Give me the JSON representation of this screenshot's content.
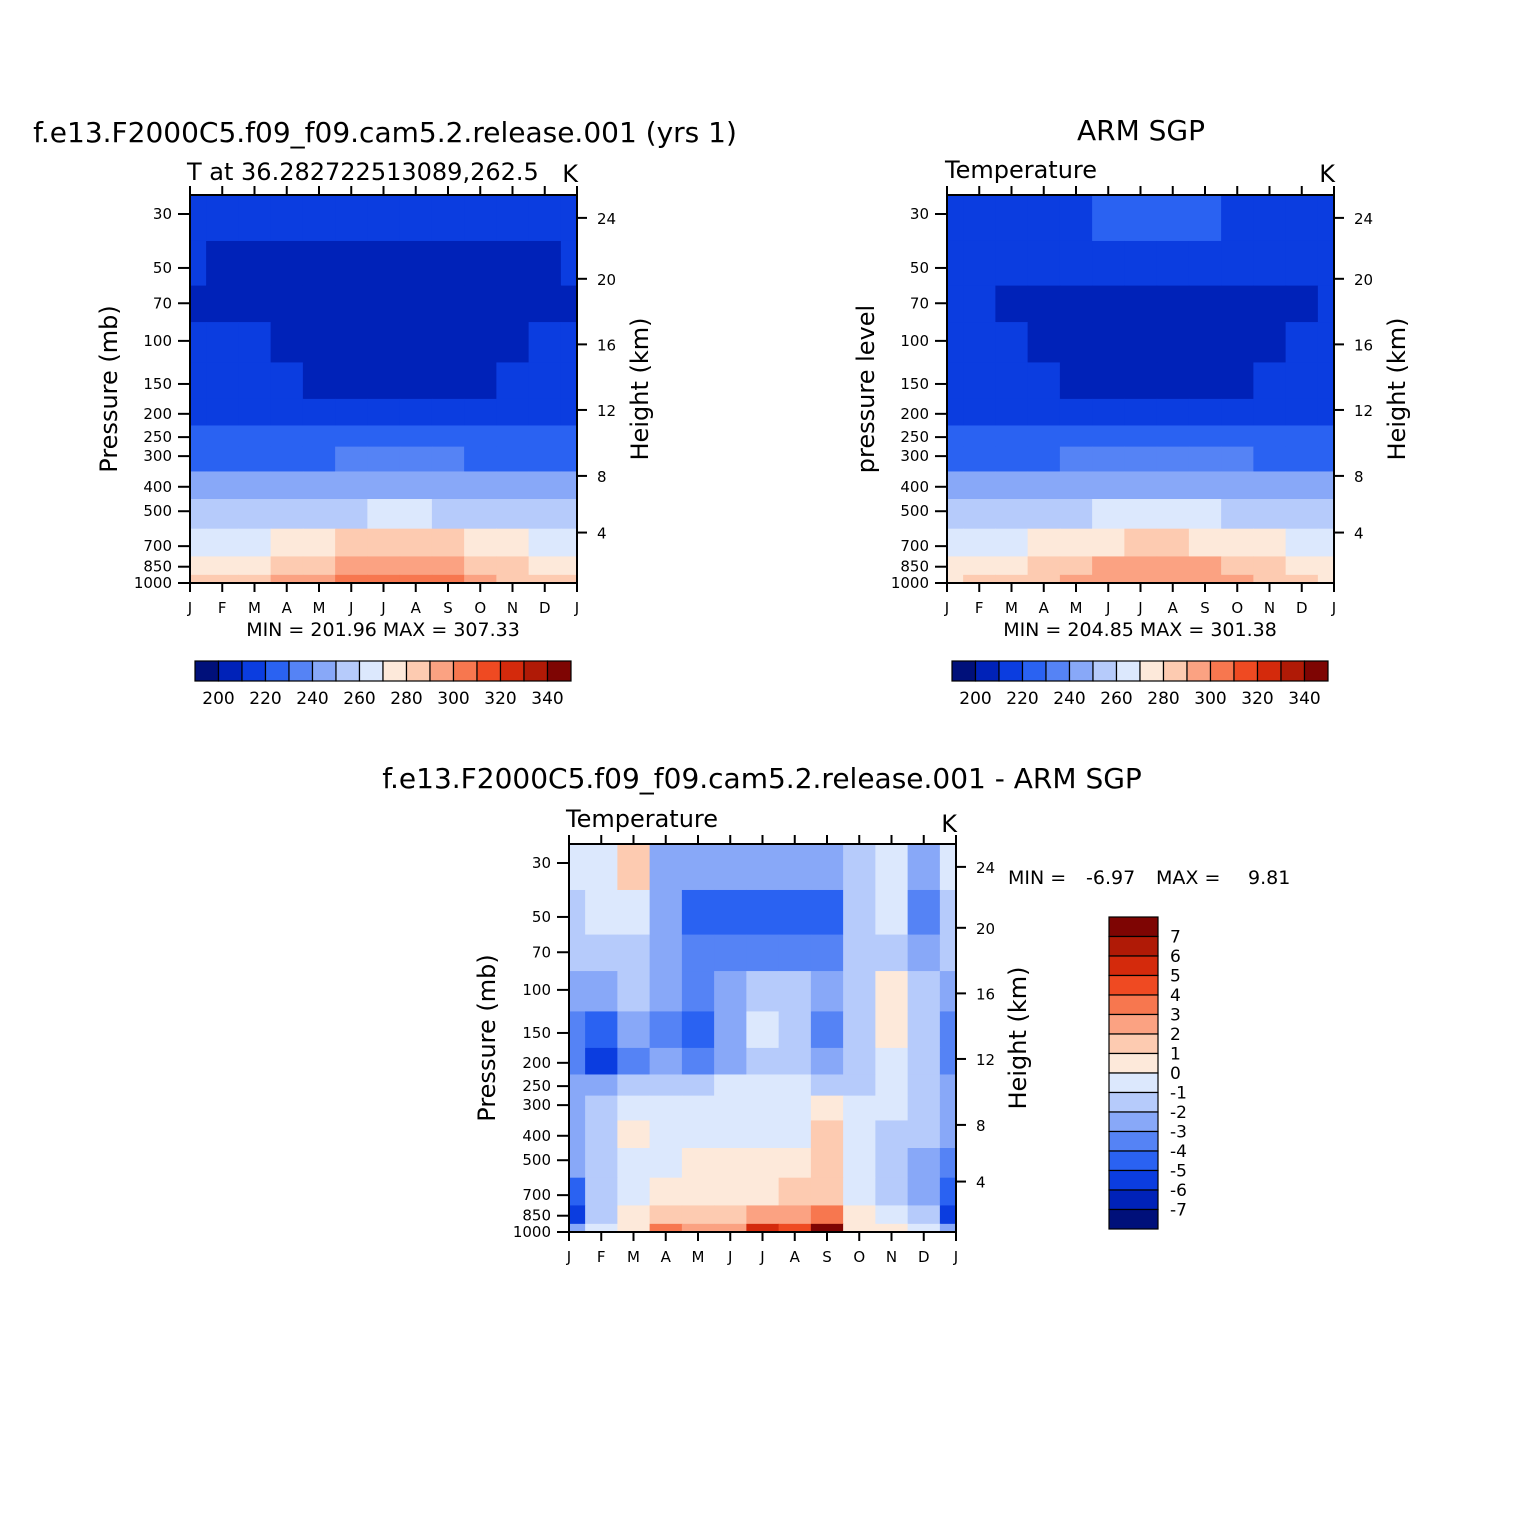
{
  "colors": {
    "abs_scale": [
      "#00107a",
      "#0022b8",
      "#0b3de0",
      "#2a62f2",
      "#5583f5",
      "#88a8f8",
      "#b6cbfb",
      "#dce8fd",
      "#fde9da",
      "#fdcbb1",
      "#fba282",
      "#f7774f",
      "#ef4a22",
      "#d42a0c",
      "#b01a06",
      "#7e0503"
    ],
    "diff_scale": [
      "#00107a",
      "#0022b8",
      "#0b3de0",
      "#2a62f2",
      "#5583f5",
      "#88a8f8",
      "#b6cbfb",
      "#dce8fd",
      "#fde9da",
      "#fdcbb1",
      "#fba282",
      "#f7774f",
      "#ef4a22",
      "#d42a0c",
      "#b01a06",
      "#7e0503"
    ]
  },
  "common": {
    "months": [
      "J",
      "F",
      "M",
      "A",
      "M",
      "J",
      "J",
      "A",
      "S",
      "O",
      "N",
      "D",
      "J"
    ],
    "pressure_ticks": [
      "30",
      "50",
      "70",
      "100",
      "150",
      "200",
      "250",
      "300",
      "400",
      "500",
      "700",
      "850",
      "1000"
    ],
    "height_ticks": [
      "24",
      "20",
      "16",
      "12",
      "8",
      "4"
    ]
  },
  "panel_model": {
    "main_title": "f.e13.F2000C5.f09_f09.cam5.2.release.001 (yrs 1)",
    "left_label": "T at 36.282722513089,262.5",
    "units": "K",
    "ylabel": "Pressure (mb)",
    "ylabel_right": "Height (km)",
    "min_max": "MIN = 201.96 MAX = 307.33",
    "colorbar_labels": [
      "200",
      "220",
      "240",
      "260",
      "280",
      "300",
      "320",
      "340"
    ]
  },
  "panel_obs": {
    "main_title": "ARM SGP",
    "left_label": "Temperature",
    "units": "K",
    "ylabel": "pressure level",
    "ylabel_right": "Height (km)",
    "min_max": "MIN = 204.85 MAX = 301.38",
    "colorbar_labels": [
      "200",
      "220",
      "240",
      "260",
      "280",
      "300",
      "320",
      "340"
    ]
  },
  "panel_diff": {
    "main_title": "f.e13.F2000C5.f09_f09.cam5.2.release.001 - ARM SGP",
    "left_label": "Temperature",
    "units": "K",
    "ylabel": "Pressure (mb)",
    "ylabel_right": "Height (km)",
    "min_label": "MIN =",
    "min_value": "-6.97",
    "max_label": "MAX =",
    "max_value": "9.81",
    "colorbar_labels": [
      "7",
      "6",
      "5",
      "4",
      "3",
      "2",
      "1",
      "0",
      "-1",
      "-2",
      "-3",
      "-4",
      "-5",
      "-6",
      "-7"
    ]
  },
  "chart_data": [
    {
      "type": "heatmap",
      "title": "f.e13.F2000C5.f09_f09.cam5.2.release.001 (yrs 1)",
      "subtitle": "T at 36.282722513089,262.5",
      "ylabel": "Pressure (mb)",
      "x": [
        "J",
        "F",
        "M",
        "A",
        "M",
        "J",
        "J",
        "A",
        "S",
        "O",
        "N",
        "D",
        "J"
      ],
      "y": [
        30,
        50,
        70,
        100,
        150,
        200,
        250,
        300,
        400,
        500,
        700,
        850,
        1000
      ],
      "min": 201.96,
      "max": 307.33,
      "values": [
        [
          215,
          214,
          213,
          212,
          212,
          212,
          212,
          212,
          212,
          212,
          213,
          214,
          216
        ],
        [
          210,
          209,
          207,
          207,
          208,
          208,
          208,
          208,
          208,
          208,
          208,
          209,
          210
        ],
        [
          207,
          206,
          205,
          205,
          206,
          206,
          206,
          206,
          206,
          206,
          206,
          206,
          207
        ],
        [
          213,
          212,
          210,
          208,
          206,
          205,
          205,
          205,
          205,
          206,
          208,
          211,
          213
        ],
        [
          216,
          215,
          213,
          211,
          208,
          206,
          206,
          206,
          206,
          208,
          211,
          214,
          216
        ],
        [
          218,
          217,
          216,
          214,
          213,
          212,
          211,
          211,
          212,
          214,
          216,
          218,
          219
        ],
        [
          222,
          221,
          221,
          220,
          220,
          221,
          221,
          221,
          221,
          221,
          221,
          222,
          223
        ],
        [
          228,
          228,
          228,
          228,
          229,
          230,
          231,
          231,
          230,
          229,
          229,
          228,
          228
        ],
        [
          240,
          240,
          241,
          242,
          244,
          246,
          247,
          247,
          246,
          244,
          242,
          241,
          240
        ],
        [
          251,
          251,
          252,
          254,
          257,
          259,
          260,
          260,
          258,
          256,
          253,
          252,
          251
        ],
        [
          266,
          267,
          269,
          273,
          277,
          281,
          282,
          282,
          280,
          276,
          271,
          268,
          266
        ],
        [
          275,
          276,
          279,
          283,
          288,
          292,
          294,
          294,
          292,
          287,
          281,
          277,
          275
        ],
        [
          281,
          282,
          286,
          291,
          297,
          302,
          305,
          304,
          300,
          294,
          287,
          283,
          281
        ]
      ]
    },
    {
      "type": "heatmap",
      "title": "ARM SGP",
      "subtitle": "Temperature",
      "ylabel": "pressure level",
      "x": [
        "J",
        "F",
        "M",
        "A",
        "M",
        "J",
        "J",
        "A",
        "S",
        "O",
        "N",
        "D",
        "J"
      ],
      "y": [
        30,
        50,
        70,
        100,
        150,
        200,
        250,
        300,
        400,
        500,
        700,
        850,
        1000
      ],
      "min": 204.85,
      "max": 301.38,
      "values": [
        [
          219,
          219,
          219,
          219,
          219,
          220,
          221,
          222,
          220,
          219,
          219,
          219,
          219
        ],
        [
          213,
          213,
          212,
          212,
          212,
          213,
          213,
          213,
          213,
          213,
          212,
          212,
          213
        ],
        [
          211,
          210,
          208,
          208,
          209,
          209,
          209,
          209,
          209,
          208,
          208,
          209,
          211
        ],
        [
          212,
          211,
          210,
          209,
          207,
          206,
          205,
          205,
          206,
          207,
          208,
          210,
          212
        ],
        [
          216,
          215,
          213,
          211,
          209,
          207,
          206,
          206,
          207,
          209,
          211,
          214,
          216
        ],
        [
          218,
          217,
          216,
          215,
          213,
          212,
          211,
          211,
          212,
          214,
          216,
          218,
          218
        ],
        [
          222,
          222,
          222,
          222,
          222,
          222,
          222,
          222,
          222,
          222,
          222,
          222,
          222
        ],
        [
          228,
          228,
          228,
          229,
          230,
          231,
          232,
          232,
          231,
          230,
          229,
          228,
          228
        ],
        [
          240,
          240,
          241,
          243,
          245,
          247,
          248,
          248,
          247,
          245,
          243,
          241,
          240
        ],
        [
          251,
          251,
          253,
          255,
          258,
          260,
          261,
          261,
          260,
          257,
          254,
          252,
          251
        ],
        [
          266,
          267,
          269,
          272,
          276,
          279,
          281,
          281,
          279,
          275,
          271,
          268,
          266
        ],
        [
          274,
          275,
          278,
          282,
          286,
          290,
          292,
          292,
          290,
          286,
          280,
          276,
          274
        ],
        [
          279,
          280,
          283,
          287,
          292,
          296,
          299,
          299,
          296,
          291,
          285,
          281,
          279
        ]
      ]
    },
    {
      "type": "heatmap",
      "title": "f.e13.F2000C5.f09_f09.cam5.2.release.001 - ARM SGP",
      "subtitle": "Temperature",
      "ylabel": "Pressure (mb)",
      "x": [
        "J",
        "F",
        "M",
        "A",
        "M",
        "J",
        "J",
        "A",
        "S",
        "O",
        "N",
        "D",
        "J"
      ],
      "y": [
        30,
        50,
        70,
        100,
        150,
        200,
        250,
        300,
        400,
        500,
        700,
        850,
        1000
      ],
      "min": -6.97,
      "max": 9.81,
      "values": [
        [
          -1,
          -1,
          1,
          -3,
          -3,
          -3,
          -3,
          -3,
          -3,
          -2,
          -1,
          -3,
          -1
        ],
        [
          -2,
          -1,
          -1,
          -3,
          -5,
          -5,
          -5,
          -5,
          -5,
          -2,
          -1,
          -4,
          -2
        ],
        [
          -2,
          -2,
          -2,
          -3,
          -4,
          -4,
          -4,
          -4,
          -4,
          -2,
          -2,
          -3,
          -2
        ],
        [
          -3,
          -3,
          -2,
          -3,
          -4,
          -3,
          -2,
          -2,
          -3,
          -2,
          0,
          -2,
          -3
        ],
        [
          -4,
          -5,
          -3,
          -4,
          -5,
          -3,
          -1,
          -2,
          -4,
          -2,
          0,
          -2,
          -4
        ],
        [
          -4,
          -6,
          -4,
          -3,
          -4,
          -3,
          -2,
          -2,
          -3,
          -2,
          -1,
          -2,
          -4
        ],
        [
          -3,
          -3,
          -2,
          -2,
          -2,
          -1,
          -1,
          -1,
          -2,
          -2,
          -1,
          -2,
          -3
        ],
        [
          -3,
          -2,
          -1,
          -1,
          -1,
          -1,
          -1,
          -1,
          0,
          -1,
          -1,
          -2,
          -3
        ],
        [
          -3,
          -2,
          0,
          -1,
          -1,
          -1,
          -1,
          -1,
          1,
          -1,
          -2,
          -2,
          -3
        ],
        [
          -3,
          -2,
          -1,
          -1,
          0,
          0,
          0,
          0,
          1,
          -1,
          -2,
          -3,
          -4
        ],
        [
          -5,
          -2,
          -1,
          0,
          0,
          0,
          0,
          1,
          1,
          -1,
          -2,
          -3,
          -5
        ],
        [
          -6,
          -2,
          0,
          1,
          1,
          1,
          2,
          2,
          3,
          0,
          -1,
          -2,
          -6
        ],
        [
          -3,
          -1,
          0,
          3,
          2,
          2,
          5,
          4,
          7,
          0,
          0,
          -1,
          -3
        ]
      ]
    }
  ]
}
